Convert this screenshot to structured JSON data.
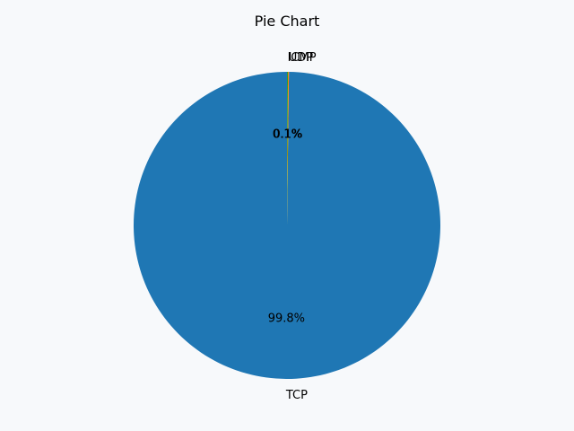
{
  "chart_data": {
    "type": "pie",
    "title": "Pie Chart",
    "start_angle_deg": 90,
    "direction": "counterclockwise",
    "slices": [
      {
        "label": "TCP",
        "value": 99.8,
        "pct_label": "99.8%",
        "color": "#1f77b4"
      },
      {
        "label": "UDP",
        "value": 0.1,
        "pct_label": "0.1%",
        "color": "#ff7f0e"
      },
      {
        "label": "ICMP",
        "value": 0.1,
        "pct_label": "0.1%",
        "color": "#2ca02c"
      }
    ]
  },
  "colors": {
    "background": "#f7f9fb"
  }
}
